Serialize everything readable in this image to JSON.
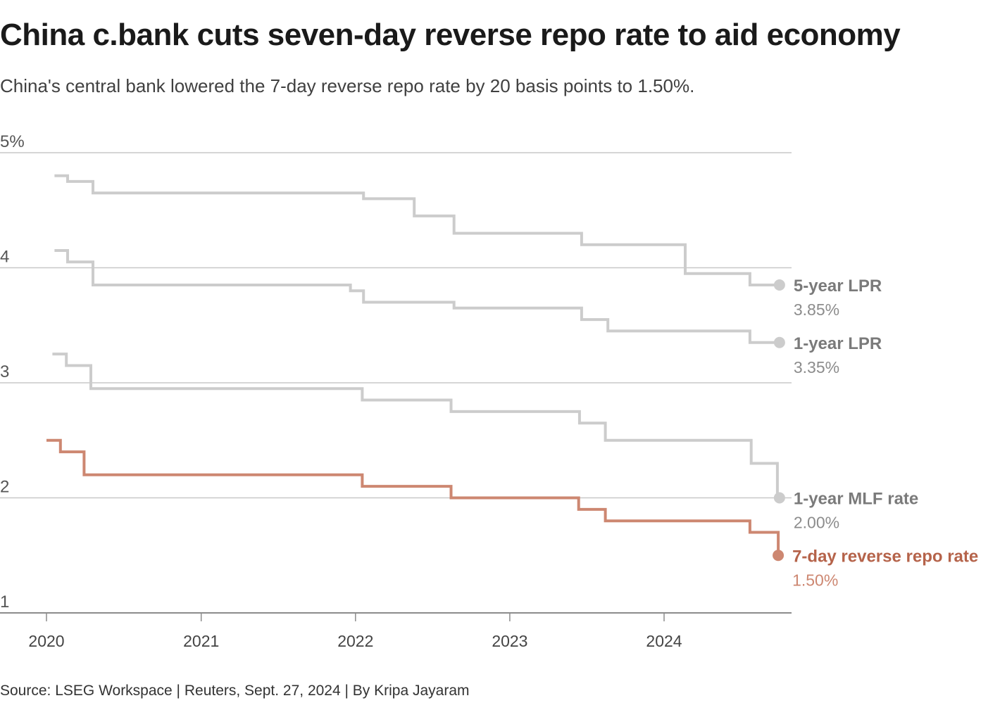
{
  "title": "China c.bank cuts seven-day reverse repo rate to aid economy",
  "subtitle": "China's central bank lowered the 7-day reverse repo rate by 20 basis points to 1.50%.",
  "source": "Source: LSEG Workspace | Reuters, Sept. 27, 2024 | By Kripa Jayaram",
  "chart_data": {
    "type": "line",
    "step": true,
    "title": "China c.bank cuts seven-day reverse repo rate to aid economy",
    "xlabel": "",
    "ylabel": "",
    "ylim": [
      1,
      5
    ],
    "xlim": [
      "2019-10-01",
      "2024-12-10"
    ],
    "y_ticks": [
      {
        "value": 5,
        "label": "5%"
      },
      {
        "value": 4,
        "label": "4"
      },
      {
        "value": 3,
        "label": "3"
      },
      {
        "value": 2,
        "label": "2"
      },
      {
        "value": 1,
        "label": "1"
      }
    ],
    "x_ticks": [
      {
        "date": "2020-01-01",
        "label": "2020"
      },
      {
        "date": "2021-01-01",
        "label": "2021"
      },
      {
        "date": "2022-01-01",
        "label": "2022"
      },
      {
        "date": "2023-01-01",
        "label": "2023"
      },
      {
        "date": "2024-01-01",
        "label": "2024"
      }
    ],
    "grid": true,
    "legend": "direct labels at right end of lines",
    "colors": {
      "muted": "#cccccc",
      "highlight": "#cd8771",
      "grid": "#c8c8c8",
      "axis": "#8c8c8c",
      "label_muted": "#7a7a7a",
      "value_muted": "#8c8c8c",
      "label_highlight": "#b5634a",
      "value_highlight": "#cd8771"
    },
    "series": [
      {
        "name": "5-year LPR",
        "value_label": "3.85%",
        "color": "#cccccc",
        "highlight": false,
        "points": [
          {
            "date": "2020-01-20",
            "value": 4.8
          },
          {
            "date": "2020-02-20",
            "value": 4.75
          },
          {
            "date": "2020-04-20",
            "value": 4.65
          },
          {
            "date": "2022-01-20",
            "value": 4.6
          },
          {
            "date": "2022-05-20",
            "value": 4.45
          },
          {
            "date": "2022-08-22",
            "value": 4.3
          },
          {
            "date": "2023-06-20",
            "value": 4.2
          },
          {
            "date": "2024-02-20",
            "value": 3.95
          },
          {
            "date": "2024-07-22",
            "value": 3.85
          },
          {
            "date": "2024-09-30",
            "value": 3.85
          }
        ]
      },
      {
        "name": "1-year LPR",
        "value_label": "3.35%",
        "color": "#cccccc",
        "highlight": false,
        "points": [
          {
            "date": "2020-01-20",
            "value": 4.15
          },
          {
            "date": "2020-02-20",
            "value": 4.05
          },
          {
            "date": "2020-04-20",
            "value": 3.85
          },
          {
            "date": "2021-12-20",
            "value": 3.8
          },
          {
            "date": "2022-01-20",
            "value": 3.7
          },
          {
            "date": "2022-08-22",
            "value": 3.65
          },
          {
            "date": "2023-06-20",
            "value": 3.55
          },
          {
            "date": "2023-08-21",
            "value": 3.45
          },
          {
            "date": "2024-07-22",
            "value": 3.35
          },
          {
            "date": "2024-09-30",
            "value": 3.35
          }
        ]
      },
      {
        "name": "1-year MLF rate",
        "value_label": "2.00%",
        "color": "#cccccc",
        "highlight": false,
        "points": [
          {
            "date": "2020-01-15",
            "value": 3.25
          },
          {
            "date": "2020-02-17",
            "value": 3.15
          },
          {
            "date": "2020-04-15",
            "value": 2.95
          },
          {
            "date": "2022-01-17",
            "value": 2.85
          },
          {
            "date": "2022-08-15",
            "value": 2.75
          },
          {
            "date": "2023-06-15",
            "value": 2.65
          },
          {
            "date": "2023-08-15",
            "value": 2.5
          },
          {
            "date": "2024-07-25",
            "value": 2.3
          },
          {
            "date": "2024-09-25",
            "value": 2.0
          },
          {
            "date": "2024-09-30",
            "value": 2.0
          }
        ]
      },
      {
        "name": "7-day reverse repo rate",
        "value_label": "1.50%",
        "color": "#cd8771",
        "highlight": true,
        "points": [
          {
            "date": "2020-01-01",
            "value": 2.5
          },
          {
            "date": "2020-02-03",
            "value": 2.4
          },
          {
            "date": "2020-03-30",
            "value": 2.2
          },
          {
            "date": "2022-01-17",
            "value": 2.1
          },
          {
            "date": "2022-08-15",
            "value": 2.0
          },
          {
            "date": "2023-06-13",
            "value": 1.9
          },
          {
            "date": "2023-08-15",
            "value": 1.8
          },
          {
            "date": "2024-07-22",
            "value": 1.7
          },
          {
            "date": "2024-09-27",
            "value": 1.5
          }
        ]
      }
    ]
  }
}
